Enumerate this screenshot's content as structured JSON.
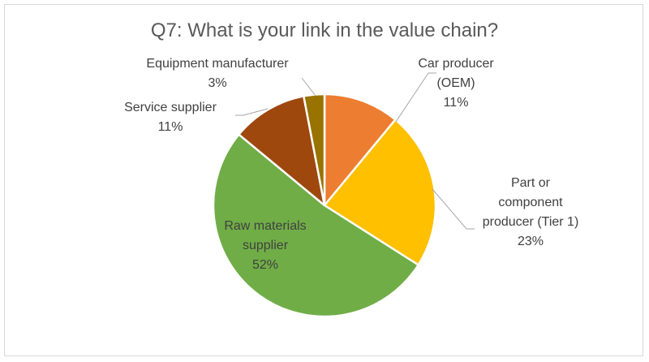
{
  "chart_data": {
    "type": "pie",
    "title": "Q7: What is your link in the value chain?",
    "slices": [
      {
        "label_lines": [
          "Car producer",
          "(OEM)"
        ],
        "pct_label": "11%",
        "value": 11,
        "color": "#ED7D31"
      },
      {
        "label_lines": [
          "Part or",
          "component",
          "producer  (Tier 1)"
        ],
        "pct_label": "23%",
        "value": 23,
        "color": "#FFC000"
      },
      {
        "label_lines": [
          "Raw materials",
          "supplier"
        ],
        "pct_label": "52%",
        "value": 52,
        "color": "#70AD47"
      },
      {
        "label_lines": [
          "Service supplier"
        ],
        "pct_label": "11%",
        "value": 11,
        "color": "#9E480E"
      },
      {
        "label_lines": [
          "Equipment  manufacturer"
        ],
        "pct_label": "3%",
        "value": 3,
        "color": "#997300"
      }
    ],
    "leader_line_color": "#a6a6a6",
    "label_color": "#404040"
  }
}
